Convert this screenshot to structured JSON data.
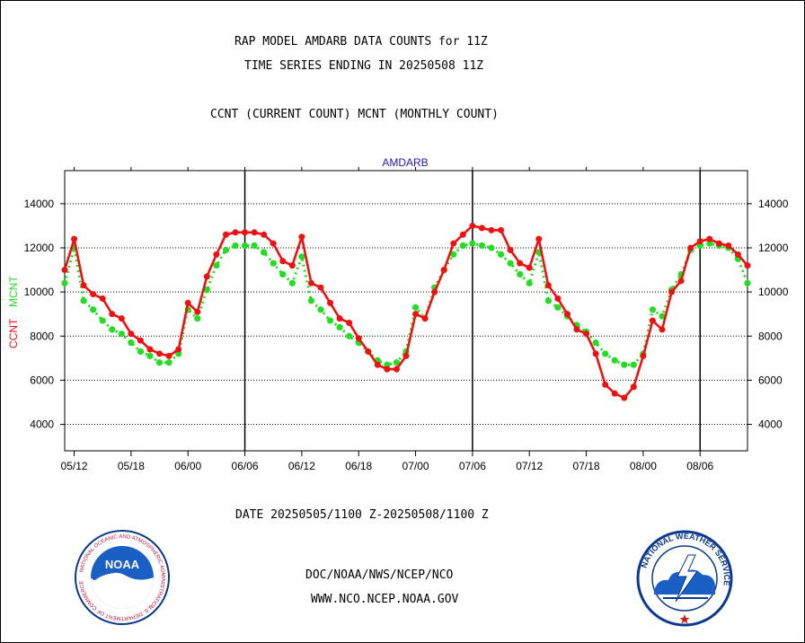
{
  "header": {
    "line1": "RAP MODEL AMDARB DATA COUNTS for 11Z",
    "line2": "TIME SERIES ENDING IN 20250508 11Z",
    "line3": "CCNT (CURRENT COUNT) MCNT (MONTHLY COUNT)"
  },
  "footer": {
    "date_range": "DATE 20250505/1100 Z-20250508/1100 Z",
    "org": "DOC/NOAA/NWS/NCEP/NCO",
    "url": "WWW.NCO.NCEP.NOAA.GOV"
  },
  "logos": {
    "noaa_ring": "NATIONAL OCEANIC AND ATMOSPHERIC ADMINISTRATION",
    "noaa_word": "NOAA",
    "noaa_bottom": "U.S. DEPARTMENT OF COMMERCE",
    "nws_ring": "NATIONAL WEATHER SERVICE"
  },
  "colors": {
    "ccnt": "#ee1111",
    "mcnt": "#22dd22",
    "title": "#1a1aaa",
    "date": "#dd1111"
  },
  "chart_data": {
    "type": "line",
    "title": "AMDARB",
    "ylabel_left": [
      "CCNT",
      "MCNT"
    ],
    "x_ticks": [
      "05/12",
      "05/18",
      "06/00",
      "06/06",
      "06/12",
      "06/18",
      "07/00",
      "07/06",
      "07/12",
      "07/18",
      "08/00",
      "08/06"
    ],
    "x_range": [
      0,
      72
    ],
    "y_ticks": [
      4000,
      6000,
      8000,
      10000,
      12000,
      14000
    ],
    "ylim": [
      2800,
      15500
    ],
    "grid": "horizontal dotted, vertical at 06 each day",
    "series": [
      {
        "name": "CCNT",
        "x": [
          0,
          1,
          2,
          3,
          4,
          5,
          6,
          7,
          8,
          9,
          10,
          11,
          12,
          13,
          14,
          15,
          16,
          17,
          18,
          19,
          20,
          21,
          22,
          23,
          24,
          25,
          26,
          27,
          28,
          29,
          30,
          31,
          32,
          33,
          34,
          35,
          36,
          37,
          38,
          39,
          40,
          41,
          42,
          43,
          44,
          45,
          46,
          47,
          48,
          49,
          50,
          51,
          52,
          53,
          54,
          55,
          56,
          57,
          58,
          59,
          60,
          61,
          62,
          63,
          64,
          65,
          66,
          67,
          68,
          69,
          70,
          71,
          72
        ],
        "values": [
          11000,
          12400,
          10300,
          9900,
          9700,
          9000,
          8800,
          8100,
          7800,
          7400,
          7200,
          7100,
          7400,
          9500,
          9100,
          10700,
          11700,
          12600,
          12700,
          12700,
          12700,
          12600,
          12200,
          11400,
          11200,
          12500,
          10400,
          10200,
          9500,
          8800,
          8600,
          7900,
          7300,
          6700,
          6500,
          6500,
          7100,
          9000,
          8800,
          10000,
          11000,
          12200,
          12600,
          13000,
          12900,
          12800,
          12800,
          11900,
          11300,
          11100,
          12400,
          10300,
          9700,
          9000,
          8300,
          8100,
          7200,
          5800,
          5400,
          5200,
          5700,
          7100,
          8700,
          8300,
          10000,
          10500,
          12000,
          12300,
          12400,
          12200,
          12100,
          11700,
          11200
        ]
      },
      {
        "name": "MCNT",
        "x": [
          0,
          1,
          2,
          3,
          4,
          5,
          6,
          7,
          8,
          9,
          10,
          11,
          12,
          13,
          14,
          15,
          16,
          17,
          18,
          19,
          20,
          21,
          22,
          23,
          24,
          25,
          26,
          27,
          28,
          29,
          30,
          31,
          32,
          33,
          34,
          35,
          36,
          37,
          38,
          39,
          40,
          41,
          42,
          43,
          44,
          45,
          46,
          47,
          48,
          49,
          50,
          51,
          52,
          53,
          54,
          55,
          56,
          57,
          58,
          59,
          60,
          61,
          62,
          63,
          64,
          65,
          66,
          67,
          68,
          69,
          70,
          71,
          72
        ],
        "values": [
          10400,
          12000,
          9600,
          9200,
          8700,
          8300,
          8100,
          7700,
          7300,
          7100,
          6800,
          6800,
          7200,
          9200,
          8800,
          10100,
          11200,
          11900,
          12100,
          12100,
          12100,
          11800,
          11300,
          10800,
          10400,
          11600,
          9600,
          9200,
          8700,
          8400,
          8000,
          7700,
          7300,
          6900,
          6700,
          6800,
          7300,
          9300,
          8800,
          10200,
          11000,
          11700,
          12100,
          12200,
          12100,
          12000,
          11700,
          11300,
          10800,
          10400,
          11800,
          9600,
          9300,
          8900,
          8500,
          8200,
          7700,
          7200,
          6900,
          6700,
          6700,
          7200,
          9200,
          8900,
          10100,
          10800,
          11900,
          12100,
          12200,
          12100,
          12000,
          11500,
          10400
        ]
      }
    ]
  }
}
